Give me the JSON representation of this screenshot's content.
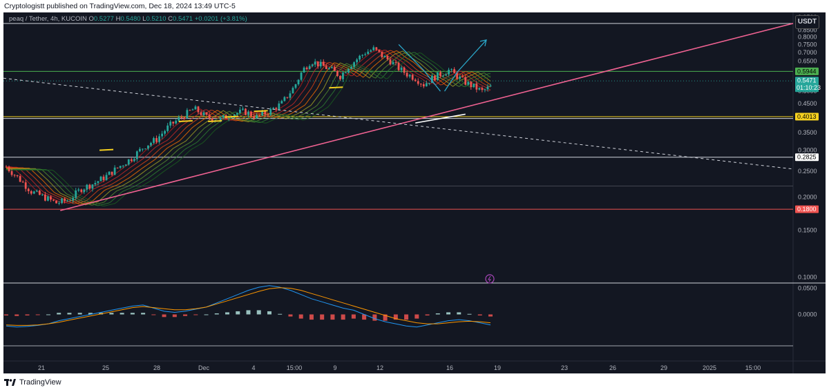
{
  "header": {
    "publisher": "Cryptologistt published on TradingView.com, Dec 18, 2024 13:49 UTC-5"
  },
  "symbol": {
    "name": "peaq / Tether, 4h, KUCOIN",
    "open_label": "O",
    "open": "0.5277",
    "high_label": "H",
    "high": "0.5480",
    "low_label": "L",
    "low": "0.5210",
    "close_label": "C",
    "close": "0.5471",
    "change": "+0.0201 (+3.81%)"
  },
  "currency": "USDT",
  "footer": {
    "brand": "TradingView"
  },
  "colors": {
    "background": "#131722",
    "up": "#26a69a",
    "down": "#ef5350",
    "trendline": "#f06292",
    "macd": "#2196f3",
    "signal": "#ff9800",
    "support_yellow": "#f5d020",
    "green_level": "#4caf50",
    "red_level": "#ef5350",
    "projection": "#2aa7c9"
  },
  "chart_data": {
    "type": "candlestick",
    "yscale": "log",
    "ylim": [
      0.095,
      0.99
    ],
    "y_ticks": [
      "0.9500",
      "0.9000",
      "0.8500",
      "0.8000",
      "0.7500",
      "0.7000",
      "0.6500",
      "0.6000",
      "0.5500",
      "0.5000",
      "0.4500",
      "0.4000",
      "0.3500",
      "0.3000",
      "0.2500",
      "0.2000",
      "0.1500",
      "0.1000"
    ],
    "x_ticks": [
      "21",
      "25",
      "28",
      "Dec",
      "4",
      "15:00",
      "9",
      "12",
      "16",
      "19",
      "23",
      "26",
      "29",
      "2025",
      "15:00"
    ],
    "price_labels": [
      {
        "value": 0.5944,
        "text": "0.5944",
        "color": "#4caf50",
        "text_color": "#000000"
      },
      {
        "value": 0.5471,
        "text": "0.5471",
        "sub": "01:10:23",
        "color": "#26a69a",
        "text_color": "#ffffff"
      },
      {
        "value": 0.4013,
        "text": "0.4013",
        "color": "#f5d020",
        "text_color": "#000000"
      },
      {
        "value": 0.2825,
        "text": "0.2825",
        "color": "#ffffff",
        "text_color": "#000000"
      },
      {
        "value": 0.18,
        "text": "0.1800",
        "color": "#ef5350",
        "text_color": "#ffffff"
      }
    ],
    "horizontal_levels": [
      {
        "value": 0.9,
        "color": "#d1d4dc"
      },
      {
        "value": 0.5944,
        "color": "#4caf50"
      },
      {
        "value": 0.4013,
        "color": "#f5d020"
      },
      {
        "value": 0.395,
        "color": "#d1d4dc"
      },
      {
        "value": 0.2825,
        "color": "#d1d4dc"
      },
      {
        "value": 0.22,
        "color": "#434651"
      },
      {
        "value": 0.18,
        "color": "#ef5350"
      }
    ],
    "price_path": [
      [
        0,
        0.26
      ],
      [
        3,
        0.235
      ],
      [
        6,
        0.21
      ],
      [
        9,
        0.2
      ],
      [
        12,
        0.19
      ],
      [
        15,
        0.195
      ],
      [
        18,
        0.215
      ],
      [
        21,
        0.225
      ],
      [
        24,
        0.24
      ],
      [
        27,
        0.26
      ],
      [
        30,
        0.28
      ],
      [
        33,
        0.31
      ],
      [
        36,
        0.33
      ],
      [
        39,
        0.37
      ],
      [
        42,
        0.4
      ],
      [
        45,
        0.43
      ],
      [
        48,
        0.4
      ],
      [
        51,
        0.39
      ],
      [
        54,
        0.41
      ],
      [
        57,
        0.42
      ],
      [
        60,
        0.4
      ],
      [
        63,
        0.42
      ],
      [
        66,
        0.45
      ],
      [
        69,
        0.52
      ],
      [
        71,
        0.6
      ],
      [
        73,
        0.65
      ],
      [
        76,
        0.62
      ],
      [
        78,
        0.6
      ],
      [
        80,
        0.57
      ],
      [
        82,
        0.62
      ],
      [
        84,
        0.66
      ],
      [
        86,
        0.7
      ],
      [
        88,
        0.72
      ],
      [
        90,
        0.68
      ],
      [
        92,
        0.65
      ],
      [
        94,
        0.61
      ],
      [
        96,
        0.58
      ],
      [
        98,
        0.56
      ],
      [
        100,
        0.53
      ],
      [
        102,
        0.56
      ],
      [
        104,
        0.58
      ],
      [
        106,
        0.6
      ],
      [
        108,
        0.57
      ],
      [
        110,
        0.54
      ],
      [
        112,
        0.52
      ],
      [
        114,
        0.5
      ],
      [
        116,
        0.52
      ]
    ],
    "trendline": [
      [
        0.072,
        0.178
      ],
      [
        1.0,
        0.9
      ]
    ],
    "dashed_line": [
      [
        0.0,
        0.56
      ],
      [
        1.0,
        0.255
      ]
    ],
    "projection": [
      [
        105,
        0.5
      ],
      [
        108,
        0.59
      ],
      [
        115,
        0.78
      ]
    ],
    "projection_left": [
      [
        94,
        0.75
      ],
      [
        100,
        0.6
      ],
      [
        104,
        0.5
      ]
    ],
    "white_arc": [
      [
        98,
        0.38
      ],
      [
        110,
        0.41
      ]
    ],
    "indicator": {
      "name": "MACD",
      "ylim": [
        -0.06,
        0.06
      ],
      "y_ticks": [
        "0.0500",
        "0.0000"
      ],
      "macd": [
        -0.022,
        -0.024,
        -0.023,
        -0.021,
        -0.018,
        -0.012,
        -0.008,
        -0.004,
        0.0,
        0.004,
        0.008,
        0.012,
        0.016,
        0.018,
        0.012,
        0.006,
        0.004,
        0.006,
        0.01,
        0.014,
        0.022,
        0.03,
        0.038,
        0.046,
        0.052,
        0.055,
        0.052,
        0.046,
        0.038,
        0.03,
        0.024,
        0.018,
        0.012,
        0.008,
        0.0,
        -0.008,
        -0.014,
        -0.018,
        -0.022,
        -0.024,
        -0.02,
        -0.016,
        -0.012,
        -0.01,
        -0.012,
        -0.016,
        -0.02
      ],
      "signal": [
        -0.02,
        -0.021,
        -0.021,
        -0.02,
        -0.018,
        -0.015,
        -0.011,
        -0.007,
        -0.003,
        0.001,
        0.005,
        0.009,
        0.013,
        0.015,
        0.013,
        0.011,
        0.009,
        0.009,
        0.011,
        0.014,
        0.02,
        0.026,
        0.032,
        0.038,
        0.044,
        0.049,
        0.051,
        0.05,
        0.046,
        0.04,
        0.034,
        0.028,
        0.022,
        0.016,
        0.01,
        0.004,
        -0.002,
        -0.008,
        -0.012,
        -0.016,
        -0.018,
        -0.018,
        -0.016,
        -0.014,
        -0.013,
        -0.014,
        -0.016
      ],
      "histogram": [
        -0.002,
        -0.003,
        -0.002,
        -0.001,
        0.0,
        0.003,
        0.003,
        0.003,
        0.003,
        0.003,
        0.003,
        0.003,
        0.003,
        0.003,
        -0.001,
        -0.005,
        -0.005,
        -0.003,
        -0.001,
        0.0,
        0.002,
        0.004,
        0.006,
        0.008,
        0.008,
        0.006,
        0.001,
        -0.004,
        -0.008,
        -0.01,
        -0.01,
        -0.01,
        -0.01,
        -0.008,
        -0.01,
        -0.012,
        -0.012,
        -0.01,
        -0.01,
        -0.008,
        -0.002,
        0.002,
        0.004,
        0.004,
        0.001,
        -0.002,
        -0.004
      ]
    }
  }
}
